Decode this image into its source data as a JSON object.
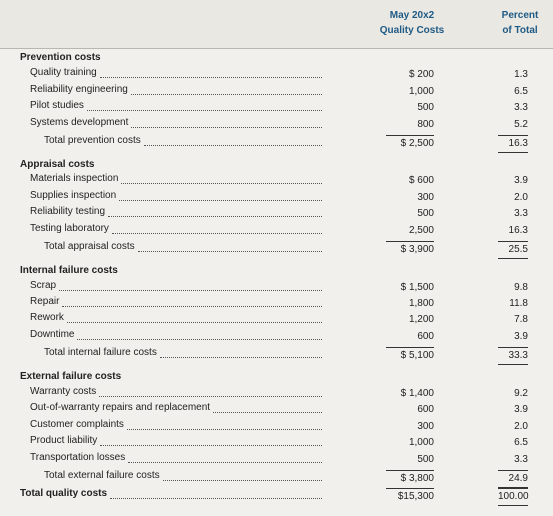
{
  "header": {
    "amount": [
      "May 20x2",
      "Quality Costs"
    ],
    "percent": [
      "Percent",
      "of Total"
    ]
  },
  "sections": [
    {
      "title": "Prevention costs",
      "rows": [
        {
          "label": "Quality training",
          "amount": "$ 200",
          "percent": "1.3"
        },
        {
          "label": "Reliability engineering",
          "amount": "1,000",
          "percent": "6.5"
        },
        {
          "label": "Pilot studies",
          "amount": "500",
          "percent": "3.3"
        },
        {
          "label": "Systems development",
          "amount": "800",
          "percent": "5.2"
        }
      ],
      "total": {
        "label": "Total prevention costs",
        "amount": "$ 2,500",
        "percent": "16.3"
      }
    },
    {
      "title": "Appraisal costs",
      "rows": [
        {
          "label": "Materials inspection",
          "amount": "$ 600",
          "percent": "3.9"
        },
        {
          "label": "Supplies inspection",
          "amount": "300",
          "percent": "2.0"
        },
        {
          "label": "Reliability testing",
          "amount": "500",
          "percent": "3.3"
        },
        {
          "label": "Testing laboratory",
          "amount": "2,500",
          "percent": "16.3"
        }
      ],
      "total": {
        "label": "Total appraisal costs",
        "amount": "$ 3,900",
        "percent": "25.5"
      }
    },
    {
      "title": "Internal failure costs",
      "rows": [
        {
          "label": "Scrap",
          "amount": "$ 1,500",
          "percent": "9.8"
        },
        {
          "label": "Repair",
          "amount": "1,800",
          "percent": "11.8"
        },
        {
          "label": "Rework",
          "amount": "1,200",
          "percent": "7.8"
        },
        {
          "label": "Downtime",
          "amount": "600",
          "percent": "3.9"
        }
      ],
      "total": {
        "label": "Total internal failure costs",
        "amount": "$ 5,100",
        "percent": "33.3"
      }
    },
    {
      "title": "External failure costs",
      "rows": [
        {
          "label": "Warranty costs",
          "amount": "$ 1,400",
          "percent": "9.2"
        },
        {
          "label": "Out-of-warranty repairs and replacement",
          "amount": "600",
          "percent": "3.9"
        },
        {
          "label": "Customer complaints",
          "amount": "300",
          "percent": "2.0"
        },
        {
          "label": "Product liability",
          "amount": "1,000",
          "percent": "6.5"
        },
        {
          "label": "Transportation losses",
          "amount": "500",
          "percent": "3.3"
        }
      ],
      "total": {
        "label": "Total external failure costs",
        "amount": "$ 3,800",
        "percent": "24.9"
      }
    }
  ],
  "grand_total": {
    "label": "Total quality costs",
    "amount": "$15,300",
    "percent": "100.00"
  }
}
